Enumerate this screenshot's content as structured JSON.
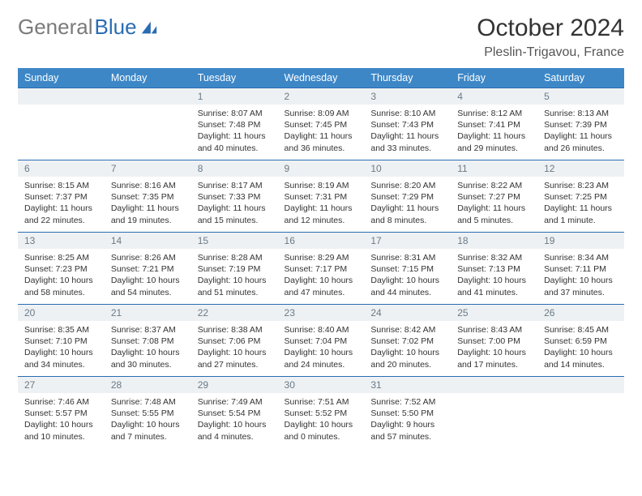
{
  "brand": {
    "part1": "General",
    "part2": "Blue"
  },
  "title": "October 2024",
  "location": "Pleslin-Trigavou, France",
  "colors": {
    "header_bg": "#3d87c7",
    "rule": "#2a6cb3",
    "daynum_bg": "#eef1f3",
    "daynum_text": "#6a7a88",
    "body_text": "#333333",
    "page_bg": "#ffffff"
  },
  "dayNames": [
    "Sunday",
    "Monday",
    "Tuesday",
    "Wednesday",
    "Thursday",
    "Friday",
    "Saturday"
  ],
  "weeks": [
    [
      null,
      null,
      {
        "n": "1",
        "sunrise": "8:07 AM",
        "sunset": "7:48 PM",
        "daylight": "11 hours and 40 minutes."
      },
      {
        "n": "2",
        "sunrise": "8:09 AM",
        "sunset": "7:45 PM",
        "daylight": "11 hours and 36 minutes."
      },
      {
        "n": "3",
        "sunrise": "8:10 AM",
        "sunset": "7:43 PM",
        "daylight": "11 hours and 33 minutes."
      },
      {
        "n": "4",
        "sunrise": "8:12 AM",
        "sunset": "7:41 PM",
        "daylight": "11 hours and 29 minutes."
      },
      {
        "n": "5",
        "sunrise": "8:13 AM",
        "sunset": "7:39 PM",
        "daylight": "11 hours and 26 minutes."
      }
    ],
    [
      {
        "n": "6",
        "sunrise": "8:15 AM",
        "sunset": "7:37 PM",
        "daylight": "11 hours and 22 minutes."
      },
      {
        "n": "7",
        "sunrise": "8:16 AM",
        "sunset": "7:35 PM",
        "daylight": "11 hours and 19 minutes."
      },
      {
        "n": "8",
        "sunrise": "8:17 AM",
        "sunset": "7:33 PM",
        "daylight": "11 hours and 15 minutes."
      },
      {
        "n": "9",
        "sunrise": "8:19 AM",
        "sunset": "7:31 PM",
        "daylight": "11 hours and 12 minutes."
      },
      {
        "n": "10",
        "sunrise": "8:20 AM",
        "sunset": "7:29 PM",
        "daylight": "11 hours and 8 minutes."
      },
      {
        "n": "11",
        "sunrise": "8:22 AM",
        "sunset": "7:27 PM",
        "daylight": "11 hours and 5 minutes."
      },
      {
        "n": "12",
        "sunrise": "8:23 AM",
        "sunset": "7:25 PM",
        "daylight": "11 hours and 1 minute."
      }
    ],
    [
      {
        "n": "13",
        "sunrise": "8:25 AM",
        "sunset": "7:23 PM",
        "daylight": "10 hours and 58 minutes."
      },
      {
        "n": "14",
        "sunrise": "8:26 AM",
        "sunset": "7:21 PM",
        "daylight": "10 hours and 54 minutes."
      },
      {
        "n": "15",
        "sunrise": "8:28 AM",
        "sunset": "7:19 PM",
        "daylight": "10 hours and 51 minutes."
      },
      {
        "n": "16",
        "sunrise": "8:29 AM",
        "sunset": "7:17 PM",
        "daylight": "10 hours and 47 minutes."
      },
      {
        "n": "17",
        "sunrise": "8:31 AM",
        "sunset": "7:15 PM",
        "daylight": "10 hours and 44 minutes."
      },
      {
        "n": "18",
        "sunrise": "8:32 AM",
        "sunset": "7:13 PM",
        "daylight": "10 hours and 41 minutes."
      },
      {
        "n": "19",
        "sunrise": "8:34 AM",
        "sunset": "7:11 PM",
        "daylight": "10 hours and 37 minutes."
      }
    ],
    [
      {
        "n": "20",
        "sunrise": "8:35 AM",
        "sunset": "7:10 PM",
        "daylight": "10 hours and 34 minutes."
      },
      {
        "n": "21",
        "sunrise": "8:37 AM",
        "sunset": "7:08 PM",
        "daylight": "10 hours and 30 minutes."
      },
      {
        "n": "22",
        "sunrise": "8:38 AM",
        "sunset": "7:06 PM",
        "daylight": "10 hours and 27 minutes."
      },
      {
        "n": "23",
        "sunrise": "8:40 AM",
        "sunset": "7:04 PM",
        "daylight": "10 hours and 24 minutes."
      },
      {
        "n": "24",
        "sunrise": "8:42 AM",
        "sunset": "7:02 PM",
        "daylight": "10 hours and 20 minutes."
      },
      {
        "n": "25",
        "sunrise": "8:43 AM",
        "sunset": "7:00 PM",
        "daylight": "10 hours and 17 minutes."
      },
      {
        "n": "26",
        "sunrise": "8:45 AM",
        "sunset": "6:59 PM",
        "daylight": "10 hours and 14 minutes."
      }
    ],
    [
      {
        "n": "27",
        "sunrise": "7:46 AM",
        "sunset": "5:57 PM",
        "daylight": "10 hours and 10 minutes."
      },
      {
        "n": "28",
        "sunrise": "7:48 AM",
        "sunset": "5:55 PM",
        "daylight": "10 hours and 7 minutes."
      },
      {
        "n": "29",
        "sunrise": "7:49 AM",
        "sunset": "5:54 PM",
        "daylight": "10 hours and 4 minutes."
      },
      {
        "n": "30",
        "sunrise": "7:51 AM",
        "sunset": "5:52 PM",
        "daylight": "10 hours and 0 minutes."
      },
      {
        "n": "31",
        "sunrise": "7:52 AM",
        "sunset": "5:50 PM",
        "daylight": "9 hours and 57 minutes."
      },
      null,
      null
    ]
  ],
  "labels": {
    "sunrise": "Sunrise:",
    "sunset": "Sunset:",
    "daylight": "Daylight:"
  }
}
